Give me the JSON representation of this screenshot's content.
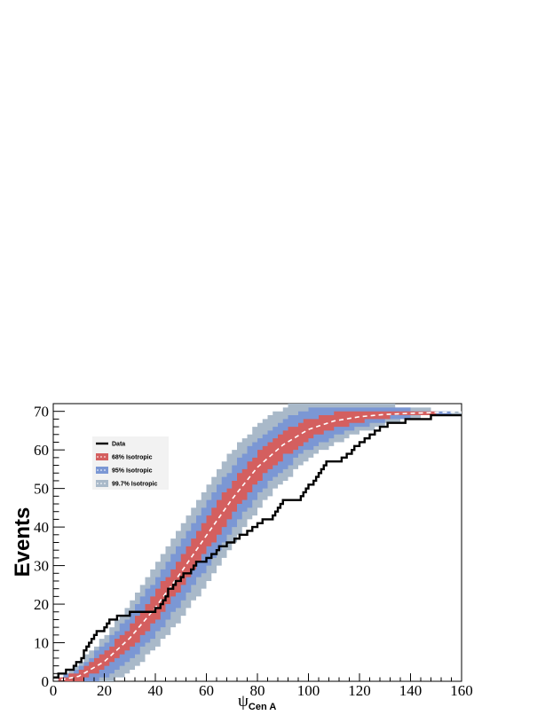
{
  "chart_data": {
    "type": "line",
    "title": "",
    "xlabel": "ψ",
    "xlabel_subscript": "Cen A",
    "ylabel": "Events",
    "xlim": [
      0,
      160
    ],
    "ylim": [
      0,
      72
    ],
    "xticks": [
      0,
      20,
      40,
      60,
      80,
      100,
      120,
      140,
      160
    ],
    "yticks": [
      0,
      10,
      20,
      30,
      40,
      50,
      60,
      70
    ],
    "grid": false,
    "legend_position": "top-left",
    "legend": [
      {
        "label": "Data",
        "kind": "line",
        "color": "#000000"
      },
      {
        "label": "68% Isotropic",
        "kind": "band",
        "color": "#d45f5f"
      },
      {
        "label": "95% Isotropic",
        "kind": "band",
        "color": "#7b97d4"
      },
      {
        "label": "99.7% Isotropic",
        "kind": "band",
        "color": "#a9b9c9"
      }
    ],
    "isotropic_expectation": {
      "name": "Isotropic",
      "style": "dashed",
      "color": "#ffffff",
      "x": [
        0,
        10,
        20,
        30,
        40,
        50,
        60,
        70,
        80,
        90,
        100,
        110,
        120,
        130,
        140,
        150,
        160
      ],
      "y": [
        0,
        1.3,
        5.1,
        11.2,
        19.1,
        28.2,
        37.8,
        47.2,
        55.5,
        61.3,
        65.3,
        67.5,
        68.6,
        69.2,
        69.5,
        69.7,
        69.8
      ]
    },
    "band_halfwidth_1sigma": [
      0,
      1.1,
      2.1,
      2.9,
      3.6,
      4.0,
      4.2,
      4.1,
      3.7,
      3.2,
      2.6,
      2.0,
      1.4,
      0.9,
      0.5,
      0.2,
      0.1
    ],
    "data_series": {
      "name": "Data",
      "style": "step",
      "color": "#000000",
      "x": [
        0,
        1,
        2,
        4,
        5,
        6,
        8,
        9,
        10,
        11,
        12,
        13,
        14,
        15,
        16,
        17,
        19,
        20,
        21,
        22,
        23,
        25,
        27,
        30,
        40,
        42,
        43,
        44,
        45,
        47,
        48,
        50,
        51,
        53,
        54,
        55,
        56,
        57,
        58,
        60,
        62,
        64,
        65,
        66,
        68,
        70,
        71,
        72,
        73,
        76,
        78,
        80,
        82,
        86,
        87,
        88,
        89,
        90,
        96,
        97,
        98,
        99,
        100,
        101,
        102,
        103,
        104,
        105,
        106,
        107,
        110,
        113,
        115,
        117,
        118,
        120,
        122,
        124,
        126,
        128,
        131,
        134,
        138,
        142,
        144,
        146,
        148,
        150,
        156,
        160
      ],
      "y": [
        1,
        1,
        2,
        2,
        3,
        3,
        4,
        5,
        5,
        6,
        8,
        9,
        10,
        11,
        12,
        13,
        13,
        14,
        15,
        16,
        16,
        17,
        17,
        18,
        19,
        20,
        21,
        22,
        24,
        25,
        26,
        27,
        28,
        28,
        29,
        30,
        31,
        31,
        31,
        32,
        33,
        34,
        35,
        35,
        36,
        36,
        37,
        37,
        38,
        39,
        40,
        41,
        42,
        43,
        44,
        45,
        46,
        47,
        47,
        48,
        49,
        50,
        51,
        51,
        52,
        53,
        54,
        55,
        56,
        57,
        57,
        58,
        59,
        60,
        61,
        62,
        63,
        64,
        65,
        66,
        67,
        67,
        68,
        68,
        68,
        68,
        69,
        69,
        69,
        69
      ]
    }
  }
}
